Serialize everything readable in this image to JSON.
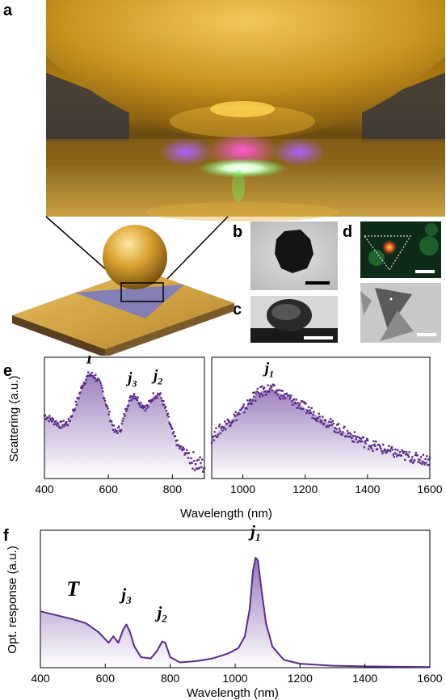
{
  "panels": {
    "a": "a",
    "b": "b",
    "c": "c",
    "d": "d",
    "e": "e",
    "f": "f"
  },
  "colors": {
    "gold": "#d4a028",
    "purple": "#5a2a8a",
    "purple_light": "#d8c8ea"
  },
  "chart_data": [
    {
      "type": "scatter",
      "panel": "e",
      "xlabel": "Wavelength (nm)",
      "ylabel": "Scattering (a.u.)",
      "subplots": [
        {
          "xlim": [
            400,
            900
          ],
          "xticks": [
            400,
            600,
            800
          ],
          "series": [
            {
              "x": [
                400,
                425,
                450,
                475,
                500,
                520,
                540,
                560,
                580,
                600,
                620,
                640,
                660,
                680,
                700,
                720,
                740,
                760,
                780,
                800,
                820,
                840,
                860,
                880,
                900
              ],
              "y": [
                0.52,
                0.48,
                0.44,
                0.46,
                0.62,
                0.78,
                0.86,
                0.84,
                0.74,
                0.55,
                0.38,
                0.42,
                0.62,
                0.7,
                0.62,
                0.58,
                0.68,
                0.7,
                0.56,
                0.38,
                0.26,
                0.22,
                0.16,
                0.12,
                0.1
              ]
            }
          ],
          "annotations": [
            {
              "text": "T",
              "x": 540,
              "y": 0.95
            },
            {
              "text": "j3",
              "x": 675,
              "y": 0.79
            },
            {
              "text": "j2",
              "x": 755,
              "y": 0.81
            }
          ]
        },
        {
          "xlim": [
            900,
            1600
          ],
          "xticks": [
            1000,
            1200,
            1400,
            1600
          ],
          "series": [
            {
              "x": [
                900,
                950,
                1000,
                1030,
                1060,
                1090,
                1120,
                1150,
                1200,
                1250,
                1300,
                1350,
                1400,
                1450,
                1500,
                1550,
                1600
              ],
              "y": [
                0.34,
                0.46,
                0.56,
                0.66,
                0.72,
                0.74,
                0.7,
                0.66,
                0.58,
                0.5,
                0.42,
                0.35,
                0.29,
                0.24,
                0.2,
                0.17,
                0.15
              ]
            }
          ],
          "annotations": [
            {
              "text": "j1",
              "x": 1085,
              "y": 0.87
            }
          ]
        }
      ]
    },
    {
      "type": "area",
      "panel": "f",
      "xlabel": "Wavelength (nm)",
      "ylabel": "Opt. response (a.u.)",
      "xlim": [
        400,
        1600
      ],
      "xticks": [
        400,
        600,
        800,
        1000,
        1200,
        1400,
        1600
      ],
      "series": [
        {
          "x": [
            400,
            450,
            500,
            540,
            580,
            610,
            625,
            640,
            655,
            665,
            675,
            690,
            710,
            740,
            760,
            775,
            785,
            800,
            830,
            880,
            930,
            980,
            1010,
            1030,
            1045,
            1055,
            1063,
            1070,
            1080,
            1095,
            1115,
            1150,
            1200,
            1300,
            1400,
            1500,
            1600
          ],
          "y": [
            0.43,
            0.4,
            0.37,
            0.34,
            0.27,
            0.19,
            0.24,
            0.19,
            0.29,
            0.33,
            0.28,
            0.16,
            0.08,
            0.07,
            0.13,
            0.2,
            0.19,
            0.08,
            0.04,
            0.05,
            0.07,
            0.11,
            0.15,
            0.24,
            0.45,
            0.74,
            0.84,
            0.82,
            0.62,
            0.34,
            0.16,
            0.06,
            0.03,
            0.015,
            0.01,
            0.007,
            0.005
          ]
        }
      ],
      "annotations": [
        {
          "text": "T",
          "x": 500,
          "y": 0.55
        },
        {
          "text": "j3",
          "x": 665,
          "y": 0.52
        },
        {
          "text": "j2",
          "x": 775,
          "y": 0.38
        },
        {
          "text": "j1",
          "x": 1063,
          "y": 1.0
        }
      ]
    }
  ]
}
